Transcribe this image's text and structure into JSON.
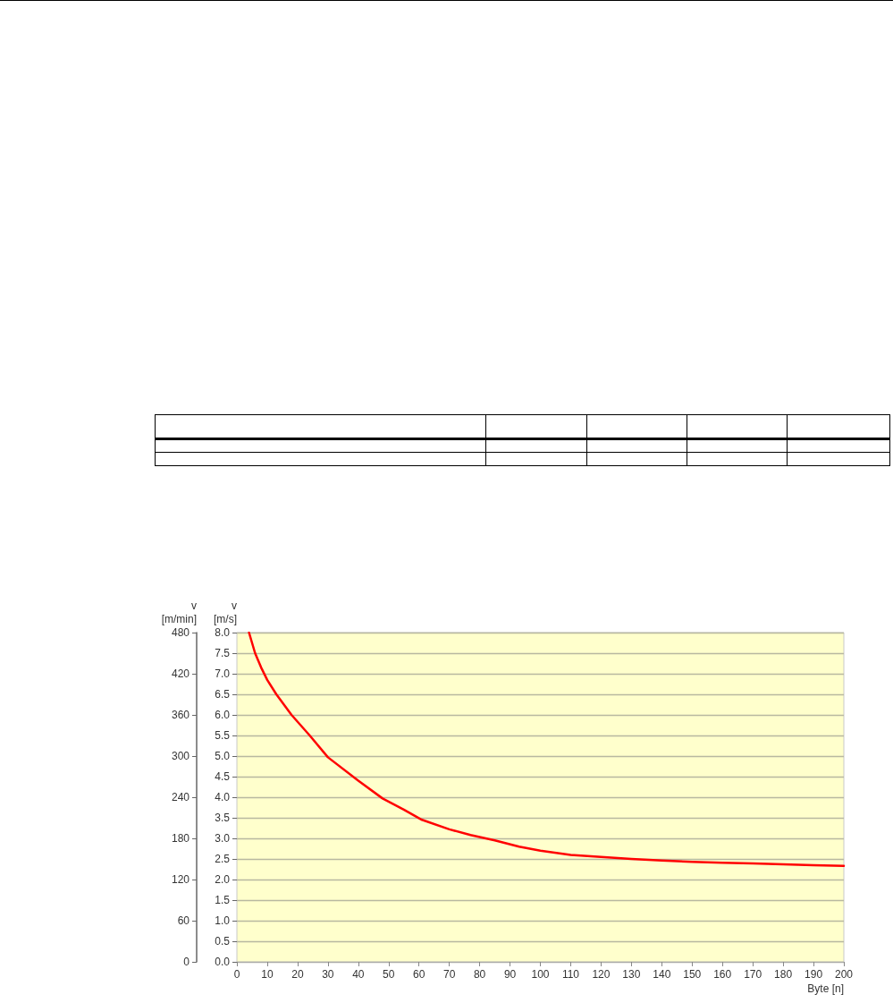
{
  "chart_data": {
    "type": "line",
    "xlabel": "Byte [n]",
    "ylabel": "v\n[m/s]",
    "y2label": "v\n[m/min]",
    "x": [
      4,
      6,
      8,
      10,
      13,
      18,
      24,
      30,
      40,
      48,
      55,
      61,
      70,
      77,
      85,
      93,
      100,
      110,
      120,
      130,
      140,
      150,
      160,
      170,
      180,
      190,
      200
    ],
    "series": [
      {
        "color": "#ff0000",
        "values": [
          8.0,
          7.5,
          7.15,
          6.85,
          6.5,
          6.0,
          5.5,
          4.97,
          4.4,
          3.97,
          3.7,
          3.45,
          3.22,
          3.08,
          2.95,
          2.8,
          2.7,
          2.6,
          2.55,
          2.5,
          2.46,
          2.43,
          2.41,
          2.39,
          2.37,
          2.35,
          2.33
        ]
      }
    ],
    "xlim": [
      0,
      200
    ],
    "xticks": [
      0,
      10,
      20,
      30,
      40,
      50,
      60,
      70,
      80,
      90,
      100,
      110,
      120,
      130,
      140,
      150,
      160,
      170,
      180,
      190,
      200
    ],
    "ylim": [
      0,
      8
    ],
    "yticks": [
      {
        "value": 0,
        "label": "0.0"
      },
      0.5,
      {
        "value": 1,
        "label": "1.0"
      },
      1.5,
      {
        "value": 2,
        "label": "2.0"
      },
      2.5,
      {
        "value": 3,
        "label": "3.0"
      },
      3.5,
      {
        "value": 4,
        "label": "4.0"
      },
      4.5,
      {
        "value": 5,
        "label": "5.0"
      },
      5.5,
      {
        "value": 6,
        "label": "6.0"
      },
      6.5,
      {
        "value": 7,
        "label": "7.0"
      },
      7.5,
      {
        "value": 8,
        "label": "8.0"
      }
    ],
    "y2lim": [
      0,
      480
    ],
    "y2ticks": [
      0,
      60,
      120,
      180,
      240,
      300,
      360,
      420,
      480
    ],
    "grid": "y",
    "marker": "none",
    "line_style": "solid"
  }
}
